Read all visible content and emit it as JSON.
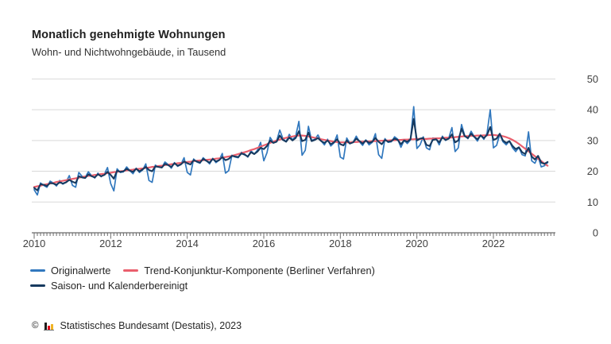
{
  "chart_data": {
    "type": "line",
    "title": "Monatlich genehmigte Wohnungen",
    "subtitle": "Wohn- und Nichtwohngebäude, in Tausend",
    "unit": "Tausend",
    "x_start": "2010-01",
    "x_end": "2023-06",
    "x_frequency": "monthly",
    "x_tick_labels": [
      "2010",
      "2012",
      "2014",
      "2016",
      "2018",
      "2020",
      "2022"
    ],
    "y_ticks": [
      0,
      10,
      20,
      30,
      40,
      50
    ],
    "ylim": [
      0,
      50
    ],
    "grid": true,
    "legend_position": "bottom-left",
    "series": [
      {
        "name": "Originalwerte",
        "color": "#3178be",
        "values": [
          14.0,
          12.3,
          16.2,
          15.4,
          14.8,
          16.8,
          16.2,
          15.2,
          17.0,
          15.8,
          16.4,
          18.6,
          15.4,
          14.8,
          19.6,
          18.4,
          18.0,
          19.8,
          18.6,
          17.8,
          19.4,
          18.2,
          19.0,
          21.2,
          16.0,
          13.6,
          20.8,
          19.6,
          19.8,
          21.4,
          20.2,
          19.2,
          21.0,
          19.6,
          20.4,
          22.4,
          17.0,
          16.4,
          22.0,
          21.4,
          21.2,
          23.0,
          22.2,
          21.0,
          22.8,
          21.6,
          22.2,
          24.4,
          19.6,
          18.8,
          24.0,
          23.0,
          22.6,
          24.4,
          23.4,
          22.4,
          24.2,
          22.8,
          23.6,
          25.8,
          19.4,
          20.2,
          25.2,
          24.6,
          24.4,
          26.2,
          25.6,
          24.6,
          26.6,
          25.6,
          26.8,
          29.4,
          23.4,
          26.0,
          31.0,
          29.4,
          29.8,
          33.4,
          30.6,
          29.6,
          32.0,
          30.2,
          31.4,
          36.2,
          25.2,
          26.8,
          34.6,
          30.0,
          30.4,
          31.8,
          29.8,
          28.6,
          30.4,
          28.2,
          29.2,
          31.8,
          24.6,
          24.0,
          30.8,
          29.0,
          29.4,
          31.4,
          29.6,
          28.4,
          30.2,
          28.6,
          29.4,
          32.2,
          25.4,
          24.2,
          30.6,
          29.4,
          29.6,
          31.2,
          30.4,
          27.8,
          30.0,
          29.0,
          30.2,
          41.0,
          27.4,
          28.6,
          31.2,
          27.6,
          27.0,
          30.8,
          30.6,
          28.6,
          31.4,
          30.0,
          30.8,
          34.2,
          26.4,
          27.6,
          35.2,
          31.6,
          30.6,
          33.0,
          31.2,
          29.8,
          31.8,
          30.4,
          32.4,
          40.0,
          27.6,
          28.4,
          32.0,
          29.6,
          28.6,
          29.8,
          27.6,
          26.4,
          27.8,
          25.4,
          25.0,
          32.8,
          23.4,
          22.6,
          24.8,
          21.4,
          21.8,
          22.8
        ]
      },
      {
        "name": "Trend-Konjunktur-Komponente (Berliner Verfahren)",
        "color": "#ea5f6d",
        "values": [
          14.9,
          15.1,
          15.3,
          15.6,
          15.8,
          16.0,
          16.2,
          16.5,
          16.7,
          16.9,
          17.1,
          17.3,
          17.5,
          17.7,
          17.9,
          18.1,
          18.3,
          18.5,
          18.6,
          18.8,
          18.9,
          19.1,
          19.2,
          19.4,
          19.5,
          19.7,
          19.8,
          20.0,
          20.1,
          20.3,
          20.4,
          20.5,
          20.7,
          20.8,
          20.9,
          21.1,
          21.2,
          21.4,
          21.5,
          21.7,
          21.8,
          22.0,
          22.1,
          22.3,
          22.4,
          22.6,
          22.7,
          22.9,
          23.0,
          23.1,
          23.3,
          23.4,
          23.5,
          23.6,
          23.7,
          23.8,
          23.9,
          24.1,
          24.2,
          24.4,
          24.6,
          24.8,
          25.0,
          25.3,
          25.6,
          25.9,
          26.2,
          26.5,
          26.9,
          27.2,
          27.6,
          28.0,
          28.4,
          28.8,
          29.2,
          29.6,
          30.0,
          30.3,
          30.6,
          30.9,
          31.1,
          31.3,
          31.5,
          31.6,
          31.6,
          31.5,
          31.3,
          31.1,
          30.9,
          30.7,
          30.4,
          30.2,
          30.0,
          29.8,
          29.6,
          29.5,
          29.4,
          29.4,
          29.4,
          29.4,
          29.5,
          29.5,
          29.6,
          29.6,
          29.7,
          29.7,
          29.8,
          29.8,
          29.9,
          29.9,
          30.0,
          30.0,
          30.1,
          30.1,
          30.2,
          30.2,
          30.3,
          30.3,
          30.4,
          30.4,
          30.5,
          30.5,
          30.5,
          30.5,
          30.6,
          30.6,
          30.7,
          30.7,
          30.8,
          30.9,
          30.9,
          31.0,
          31.1,
          31.2,
          31.3,
          31.4,
          31.4,
          31.5,
          31.5,
          31.6,
          31.6,
          31.7,
          31.7,
          31.8,
          31.8,
          31.7,
          31.6,
          31.4,
          31.1,
          30.7,
          30.2,
          29.6,
          28.9,
          28.1,
          27.3,
          26.5,
          25.7,
          24.9,
          24.1,
          23.3,
          22.5,
          21.8
        ]
      },
      {
        "name": "Saison- und Kalenderbereinigt",
        "color": "#173a5f",
        "values": [
          14.6,
          13.8,
          15.8,
          15.6,
          15.2,
          16.2,
          16.0,
          15.6,
          16.4,
          16.0,
          16.4,
          17.2,
          16.6,
          16.2,
          18.4,
          18.0,
          17.8,
          19.0,
          18.4,
          18.0,
          19.0,
          18.4,
          18.8,
          19.8,
          18.8,
          17.6,
          20.2,
          19.8,
          20.0,
          20.8,
          20.2,
          19.8,
          20.8,
          20.0,
          20.6,
          21.4,
          20.4,
          20.0,
          21.6,
          21.4,
          21.2,
          22.4,
          22.0,
          21.4,
          22.6,
          21.8,
          22.2,
          23.2,
          22.6,
          22.2,
          23.6,
          23.2,
          22.8,
          24.0,
          23.4,
          22.8,
          24.0,
          23.2,
          23.6,
          24.6,
          23.6,
          24.0,
          25.0,
          24.8,
          24.6,
          25.8,
          25.4,
          24.8,
          26.2,
          25.6,
          26.4,
          27.6,
          27.2,
          28.2,
          30.0,
          29.2,
          29.6,
          31.6,
          30.2,
          29.6,
          31.0,
          30.0,
          30.8,
          33.0,
          29.8,
          30.2,
          32.6,
          29.8,
          30.2,
          30.8,
          29.8,
          29.2,
          30.0,
          28.8,
          29.4,
          30.4,
          28.8,
          28.4,
          30.0,
          29.0,
          29.4,
          30.6,
          29.8,
          29.0,
          30.0,
          29.2,
          29.6,
          30.8,
          29.6,
          28.8,
          30.2,
          29.6,
          29.8,
          30.6,
          30.2,
          28.8,
          30.0,
          29.6,
          30.4,
          37.0,
          30.0,
          30.6,
          30.8,
          28.6,
          28.2,
          30.2,
          30.4,
          29.4,
          31.0,
          30.2,
          30.6,
          32.0,
          29.4,
          30.0,
          33.8,
          31.4,
          30.8,
          32.2,
          31.2,
          30.4,
          31.6,
          30.8,
          31.8,
          34.4,
          30.2,
          30.6,
          32.2,
          30.0,
          29.2,
          29.8,
          28.2,
          27.2,
          27.8,
          26.2,
          25.6,
          27.6,
          24.8,
          23.8,
          25.0,
          22.8,
          22.4,
          23.0
        ]
      }
    ]
  },
  "colors": {
    "background": "#ffffff",
    "grid": "#d9d9d9",
    "axis": "#6b6b6b",
    "axis_text": "#3f3f3f"
  },
  "footer": {
    "copyright": "©",
    "source": "Statistisches Bundesamt (Destatis), 2023",
    "logo_colors": [
      "#1d1d1b",
      "#e10019",
      "#f0b323"
    ]
  }
}
